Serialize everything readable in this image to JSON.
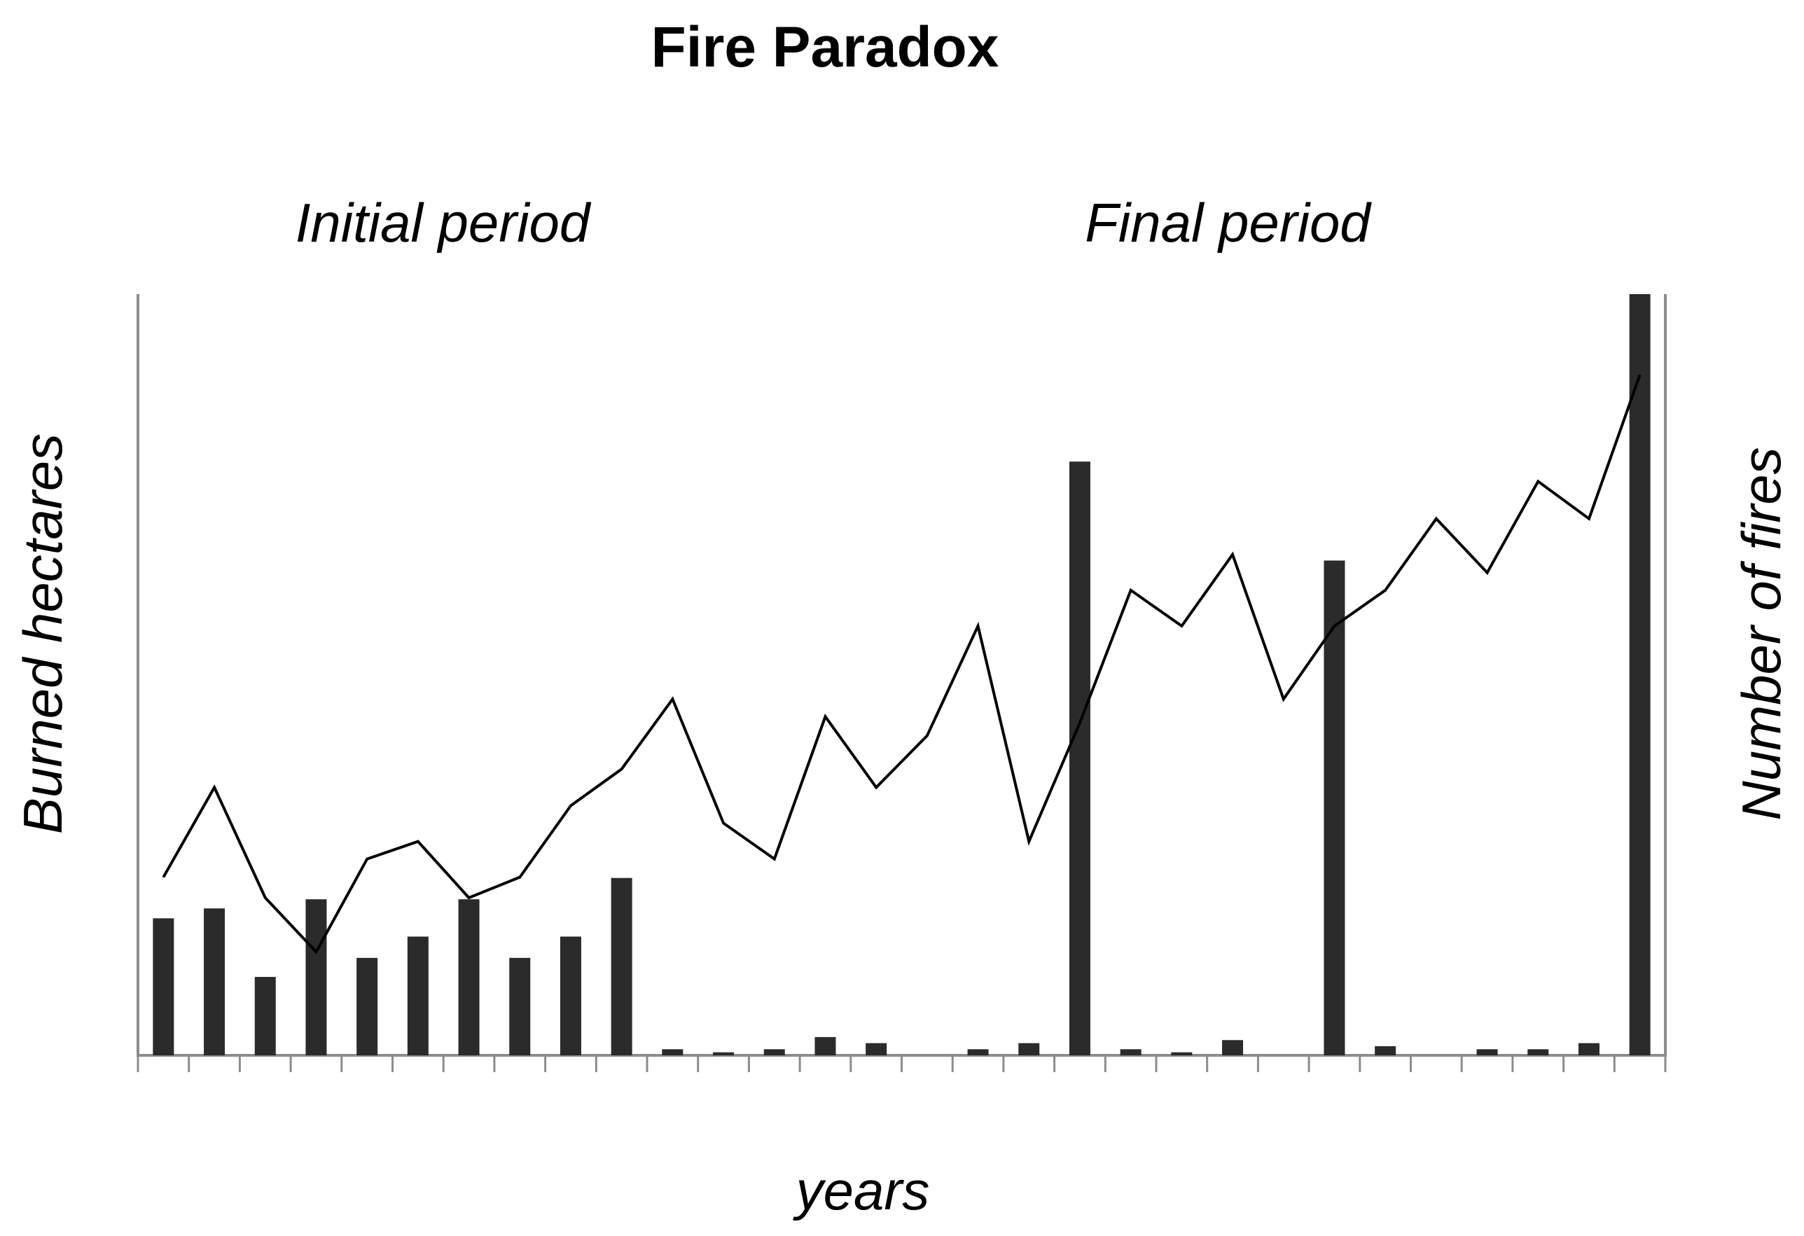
{
  "chart_data": {
    "type": "bar+line",
    "title": "Fire Paradox",
    "xlabel": "years",
    "ylabel_left": "Burned hectares",
    "ylabel_right": "Number of fires",
    "annotations": [
      "Initial period",
      "Final period"
    ],
    "tick_labels": [],
    "grid": false,
    "legend": "none",
    "n_years": 30,
    "ylim_bars": [
      0,
      100
    ],
    "ylim_line": [
      0,
      100
    ],
    "series": [
      {
        "kind": "bar",
        "color": "#2b2b2b",
        "values": [
          18,
          19.3,
          10.3,
          20.5,
          12.8,
          15.6,
          20.5,
          12.8,
          15.6,
          23.3,
          0.8,
          0.4,
          0.8,
          2.4,
          1.6,
          0,
          0.8,
          1.6,
          78,
          0.8,
          0.4,
          2,
          0,
          65,
          1.2,
          0,
          0.8,
          0.8,
          1.6,
          100
        ]
      },
      {
        "kind": "line",
        "color": "#000000",
        "values": [
          23.4,
          35.2,
          20.7,
          13.6,
          25.8,
          28.1,
          20.7,
          23.4,
          32.8,
          37.6,
          46.8,
          30.5,
          25.8,
          44.5,
          35.2,
          42,
          56.4,
          28.1,
          43.7,
          61.1,
          56.4,
          65.8,
          46.8,
          56.4,
          61.1,
          70.5,
          63.4,
          75.4,
          70.5,
          89.4
        ]
      }
    ]
  }
}
